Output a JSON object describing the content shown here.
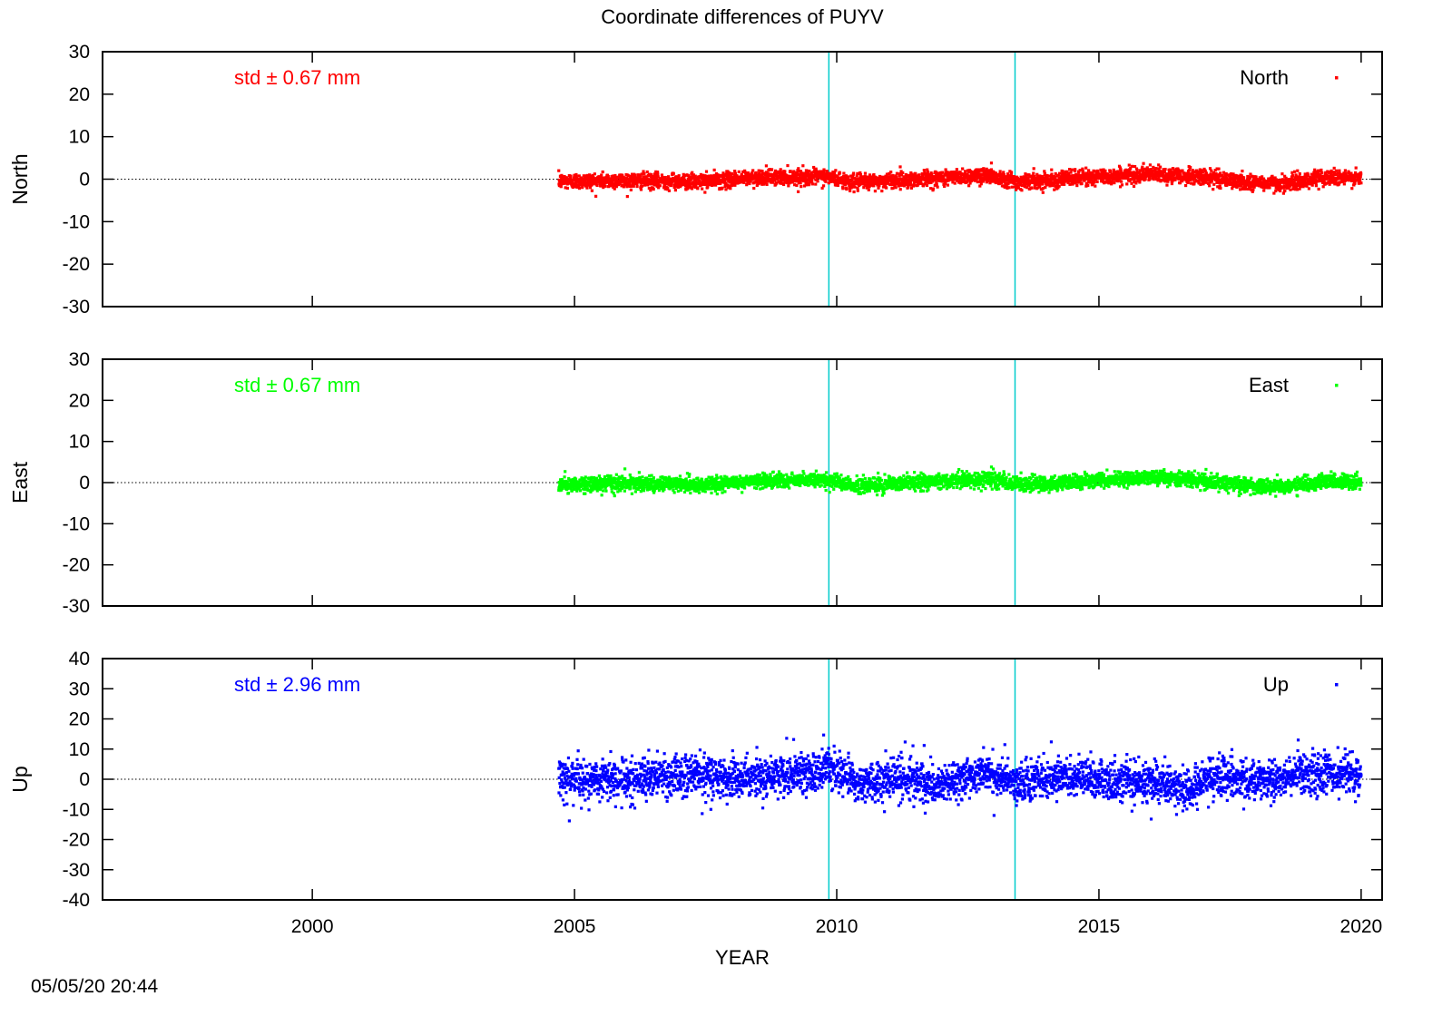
{
  "title": "Coordinate differences of PUYV",
  "timestamp": "05/05/20 20:44",
  "xlabel": "YEAR",
  "colors": {
    "axis": "#000000",
    "marker_line": "#00cccc",
    "zero_line": "#000000"
  },
  "chart_data": [
    {
      "type": "scatter",
      "ylabel": "North",
      "legend": "North",
      "legend_placement": "top-right",
      "std_label": "std ± 0.67 mm",
      "color": "#ff0000",
      "xlim": [
        1996,
        2020.4
      ],
      "ylim": [
        -30,
        30
      ],
      "yticks": [
        30,
        20,
        10,
        0,
        -10,
        -20,
        -30
      ],
      "xticks": [
        2000,
        2005,
        2010,
        2015,
        2020
      ],
      "vlines": [
        2009.85,
        2013.4
      ],
      "data_range": [
        2004.7,
        2020.0
      ],
      "trend": [
        [
          2004.7,
          -0.5
        ],
        [
          2006.0,
          -0.3
        ],
        [
          2007.4,
          -0.6
        ],
        [
          2008.5,
          0.4
        ],
        [
          2009.8,
          0.6
        ],
        [
          2010.3,
          -0.8
        ],
        [
          2011.5,
          0.0
        ],
        [
          2012.9,
          0.9
        ],
        [
          2013.5,
          -0.6
        ],
        [
          2014.5,
          0.2
        ],
        [
          2016.0,
          1.2
        ],
        [
          2017.2,
          0.3
        ],
        [
          2017.8,
          -0.8
        ],
        [
          2018.6,
          -1.0
        ],
        [
          2019.3,
          0.5
        ],
        [
          2020.0,
          0.1
        ]
      ],
      "spread": 0.9,
      "outliers": [
        [
          2012.95,
          3.8
        ],
        [
          2012.8,
          2.5
        ]
      ]
    },
    {
      "type": "scatter",
      "ylabel": "East",
      "legend": "East",
      "legend_placement": "top-right",
      "std_label": "std ± 0.67 mm",
      "color": "#00ff00",
      "xlim": [
        1996,
        2020.4
      ],
      "ylim": [
        -30,
        30
      ],
      "yticks": [
        30,
        20,
        10,
        0,
        -10,
        -20,
        -30
      ],
      "xticks": [
        2000,
        2005,
        2010,
        2015,
        2020
      ],
      "vlines": [
        2009.85,
        2013.4
      ],
      "data_range": [
        2004.7,
        2020.0
      ],
      "trend": [
        [
          2004.7,
          -0.5
        ],
        [
          2006.0,
          -0.3
        ],
        [
          2007.4,
          -0.6
        ],
        [
          2008.5,
          0.4
        ],
        [
          2009.8,
          0.6
        ],
        [
          2010.3,
          -0.8
        ],
        [
          2011.5,
          0.0
        ],
        [
          2012.9,
          0.9
        ],
        [
          2013.5,
          -0.6
        ],
        [
          2014.5,
          0.2
        ],
        [
          2016.0,
          1.2
        ],
        [
          2017.2,
          0.3
        ],
        [
          2017.8,
          -0.8
        ],
        [
          2018.6,
          -1.0
        ],
        [
          2019.3,
          0.5
        ],
        [
          2020.0,
          0.1
        ]
      ],
      "spread": 0.9,
      "outliers": [
        [
          2012.95,
          3.8
        ],
        [
          2012.8,
          2.5
        ]
      ]
    },
    {
      "type": "scatter",
      "ylabel": "Up",
      "legend": "Up",
      "legend_placement": "top-right",
      "std_label": "std ± 2.96 mm",
      "color": "#0000ff",
      "xlim": [
        1996,
        2020.4
      ],
      "ylim": [
        -40,
        40
      ],
      "yticks": [
        40,
        30,
        20,
        10,
        0,
        -10,
        -20,
        -30,
        -40
      ],
      "xticks": [
        2000,
        2005,
        2010,
        2015,
        2020
      ],
      "vlines": [
        2009.85,
        2013.4
      ],
      "data_range": [
        2004.7,
        2020.0
      ],
      "trend": [
        [
          2004.7,
          0.5
        ],
        [
          2005.5,
          -0.5
        ],
        [
          2006.5,
          0.5
        ],
        [
          2007.5,
          1.5
        ],
        [
          2008.0,
          0.0
        ],
        [
          2009.0,
          1.0
        ],
        [
          2009.9,
          3.0
        ],
        [
          2010.5,
          -1.0
        ],
        [
          2011.5,
          0.0
        ],
        [
          2012.0,
          -2.0
        ],
        [
          2012.8,
          2.5
        ],
        [
          2013.4,
          -1.5
        ],
        [
          2014.3,
          1.0
        ],
        [
          2015.0,
          -0.5
        ],
        [
          2016.0,
          -1.0
        ],
        [
          2016.6,
          -3.0
        ],
        [
          2017.3,
          1.0
        ],
        [
          2018.2,
          -0.5
        ],
        [
          2019.0,
          2.0
        ],
        [
          2020.0,
          1.5
        ]
      ],
      "spread": 3.2,
      "outliers": [
        [
          2018.8,
          13.0
        ],
        [
          2009.95,
          11.0
        ],
        [
          2012.8,
          10.5
        ],
        [
          2007.6,
          -10.0
        ],
        [
          2013.0,
          -12.0
        ],
        [
          2016.6,
          -10.5
        ],
        [
          2005.9,
          -9.5
        ]
      ]
    }
  ]
}
